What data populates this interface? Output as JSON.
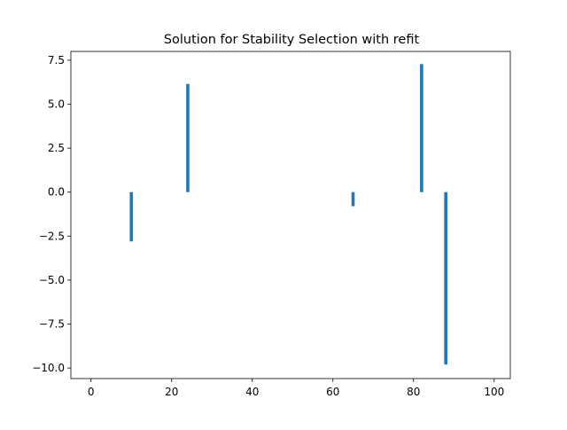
{
  "chart_data": {
    "type": "bar",
    "title": "Solution for Stability Selection with refit",
    "xlabel": "",
    "ylabel": "",
    "xlim": [
      -5,
      104
    ],
    "ylim": [
      -10.6,
      8.0
    ],
    "x_ticks": [
      0,
      20,
      40,
      60,
      80,
      100
    ],
    "y_ticks": [
      7.5,
      5.0,
      2.5,
      0.0,
      -2.5,
      -5.0,
      -7.5,
      -10.0
    ],
    "grid": false,
    "bar_color": "#1f77b4",
    "bars": [
      {
        "x": 10,
        "value": -2.8
      },
      {
        "x": 24,
        "value": 6.15
      },
      {
        "x": 65,
        "value": -0.8
      },
      {
        "x": 82,
        "value": 7.28
      },
      {
        "x": 88,
        "value": -9.8
      }
    ]
  }
}
